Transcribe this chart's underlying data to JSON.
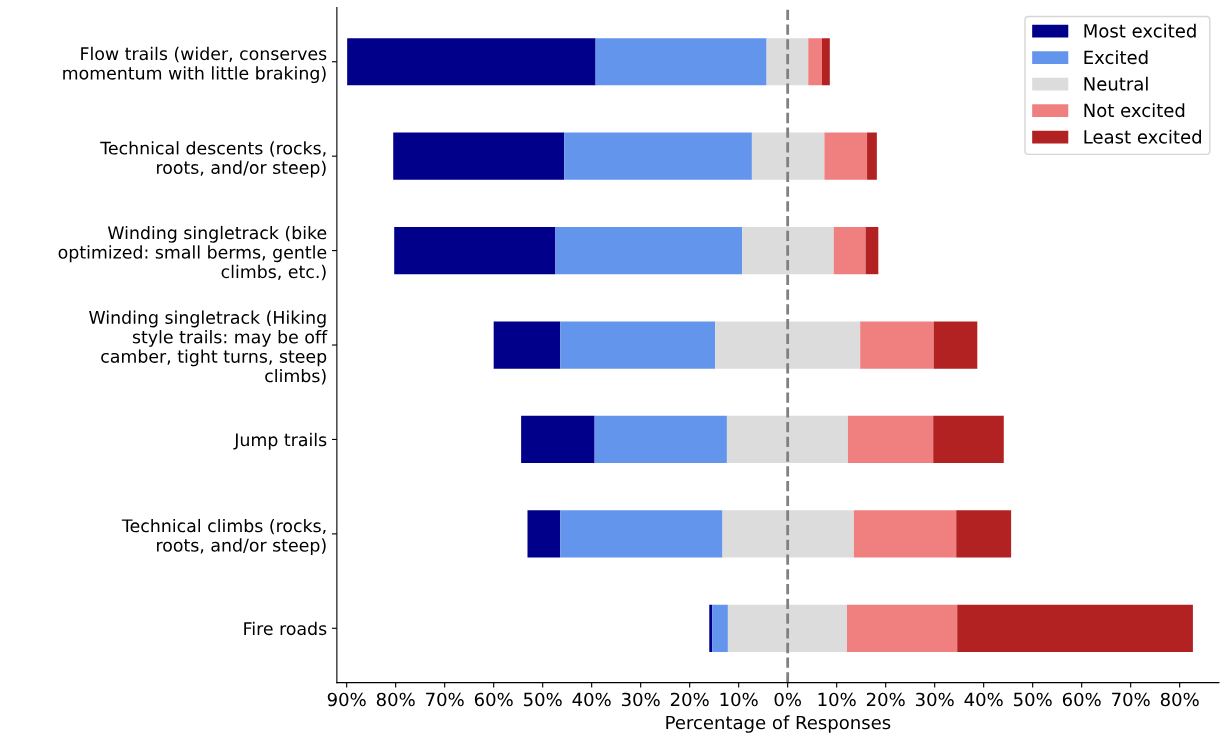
{
  "chart_data": {
    "type": "bar",
    "orientation": "horizontal",
    "xlabel": "Percentage of Responses",
    "categories": [
      "Flow trails (wider, conserves\nmomentum with little braking)",
      "Technical descents (rocks,\nroots, and/or steep)",
      "Winding singletrack (bike\noptimized: small berms, gentle\nclimbs, etc.)",
      "Winding singletrack (Hiking\nstyle trails: may be off\ncamber, tight turns, steep\nclimbs)",
      "Jump trails",
      "Technical climbs (rocks,\nroots, and/or steep)",
      "Fire roads"
    ],
    "series": [
      {
        "name": "Most excited",
        "color": "#00008b",
        "base": [
          -89.9,
          -80.5,
          -80.3,
          -60.0,
          -54.4,
          -53.1,
          -16.0
        ],
        "values": [
          50.7,
          34.9,
          32.9,
          13.6,
          15.0,
          6.7,
          0.6
        ]
      },
      {
        "name": "Excited",
        "color": "#6495ed",
        "base": [
          -39.2,
          -45.6,
          -47.4,
          -46.4,
          -39.4,
          -46.4,
          -15.4
        ],
        "values": [
          34.9,
          38.3,
          38.1,
          31.6,
          27.0,
          33.1,
          3.2
        ]
      },
      {
        "name": "Neutral",
        "color": "#dcdcdc",
        "base": [
          -4.3,
          -7.3,
          -9.3,
          -14.8,
          -12.4,
          -13.3,
          -12.2
        ],
        "values": [
          8.5,
          14.8,
          18.7,
          29.6,
          24.7,
          26.8,
          24.3
        ]
      },
      {
        "name": "Not excited",
        "color": "#f08080",
        "base": [
          4.2,
          7.5,
          9.4,
          14.8,
          12.3,
          13.5,
          12.1
        ],
        "values": [
          2.8,
          8.7,
          6.5,
          15.0,
          17.4,
          20.9,
          22.5
        ]
      },
      {
        "name": "Least excited",
        "color": "#b22222",
        "base": [
          7.0,
          16.2,
          15.9,
          29.8,
          29.7,
          34.4,
          34.6
        ],
        "values": [
          1.6,
          2.0,
          2.6,
          8.9,
          14.4,
          11.2,
          48.1
        ]
      }
    ],
    "xlim": [
      -92,
      88
    ],
    "xticks": [
      {
        "value": -90,
        "label": "90%"
      },
      {
        "value": -80,
        "label": "80%"
      },
      {
        "value": -70,
        "label": "70%"
      },
      {
        "value": -60,
        "label": "60%"
      },
      {
        "value": -50,
        "label": "50%"
      },
      {
        "value": -40,
        "label": "40%"
      },
      {
        "value": -30,
        "label": "30%"
      },
      {
        "value": -20,
        "label": "20%"
      },
      {
        "value": -10,
        "label": "10%"
      },
      {
        "value": 0,
        "label": "0%"
      },
      {
        "value": 10,
        "label": "10%"
      },
      {
        "value": 20,
        "label": "20%"
      },
      {
        "value": 30,
        "label": "30%"
      },
      {
        "value": 40,
        "label": "40%"
      },
      {
        "value": 50,
        "label": "50%"
      },
      {
        "value": 60,
        "label": "60%"
      },
      {
        "value": 70,
        "label": "70%"
      },
      {
        "value": 80,
        "label": "80%"
      }
    ],
    "ref_lines": [
      {
        "axis": "x",
        "value": 0,
        "label": null,
        "color": "#808080",
        "line_style": "dashed"
      }
    ],
    "legend": "top right",
    "grid": false
  }
}
